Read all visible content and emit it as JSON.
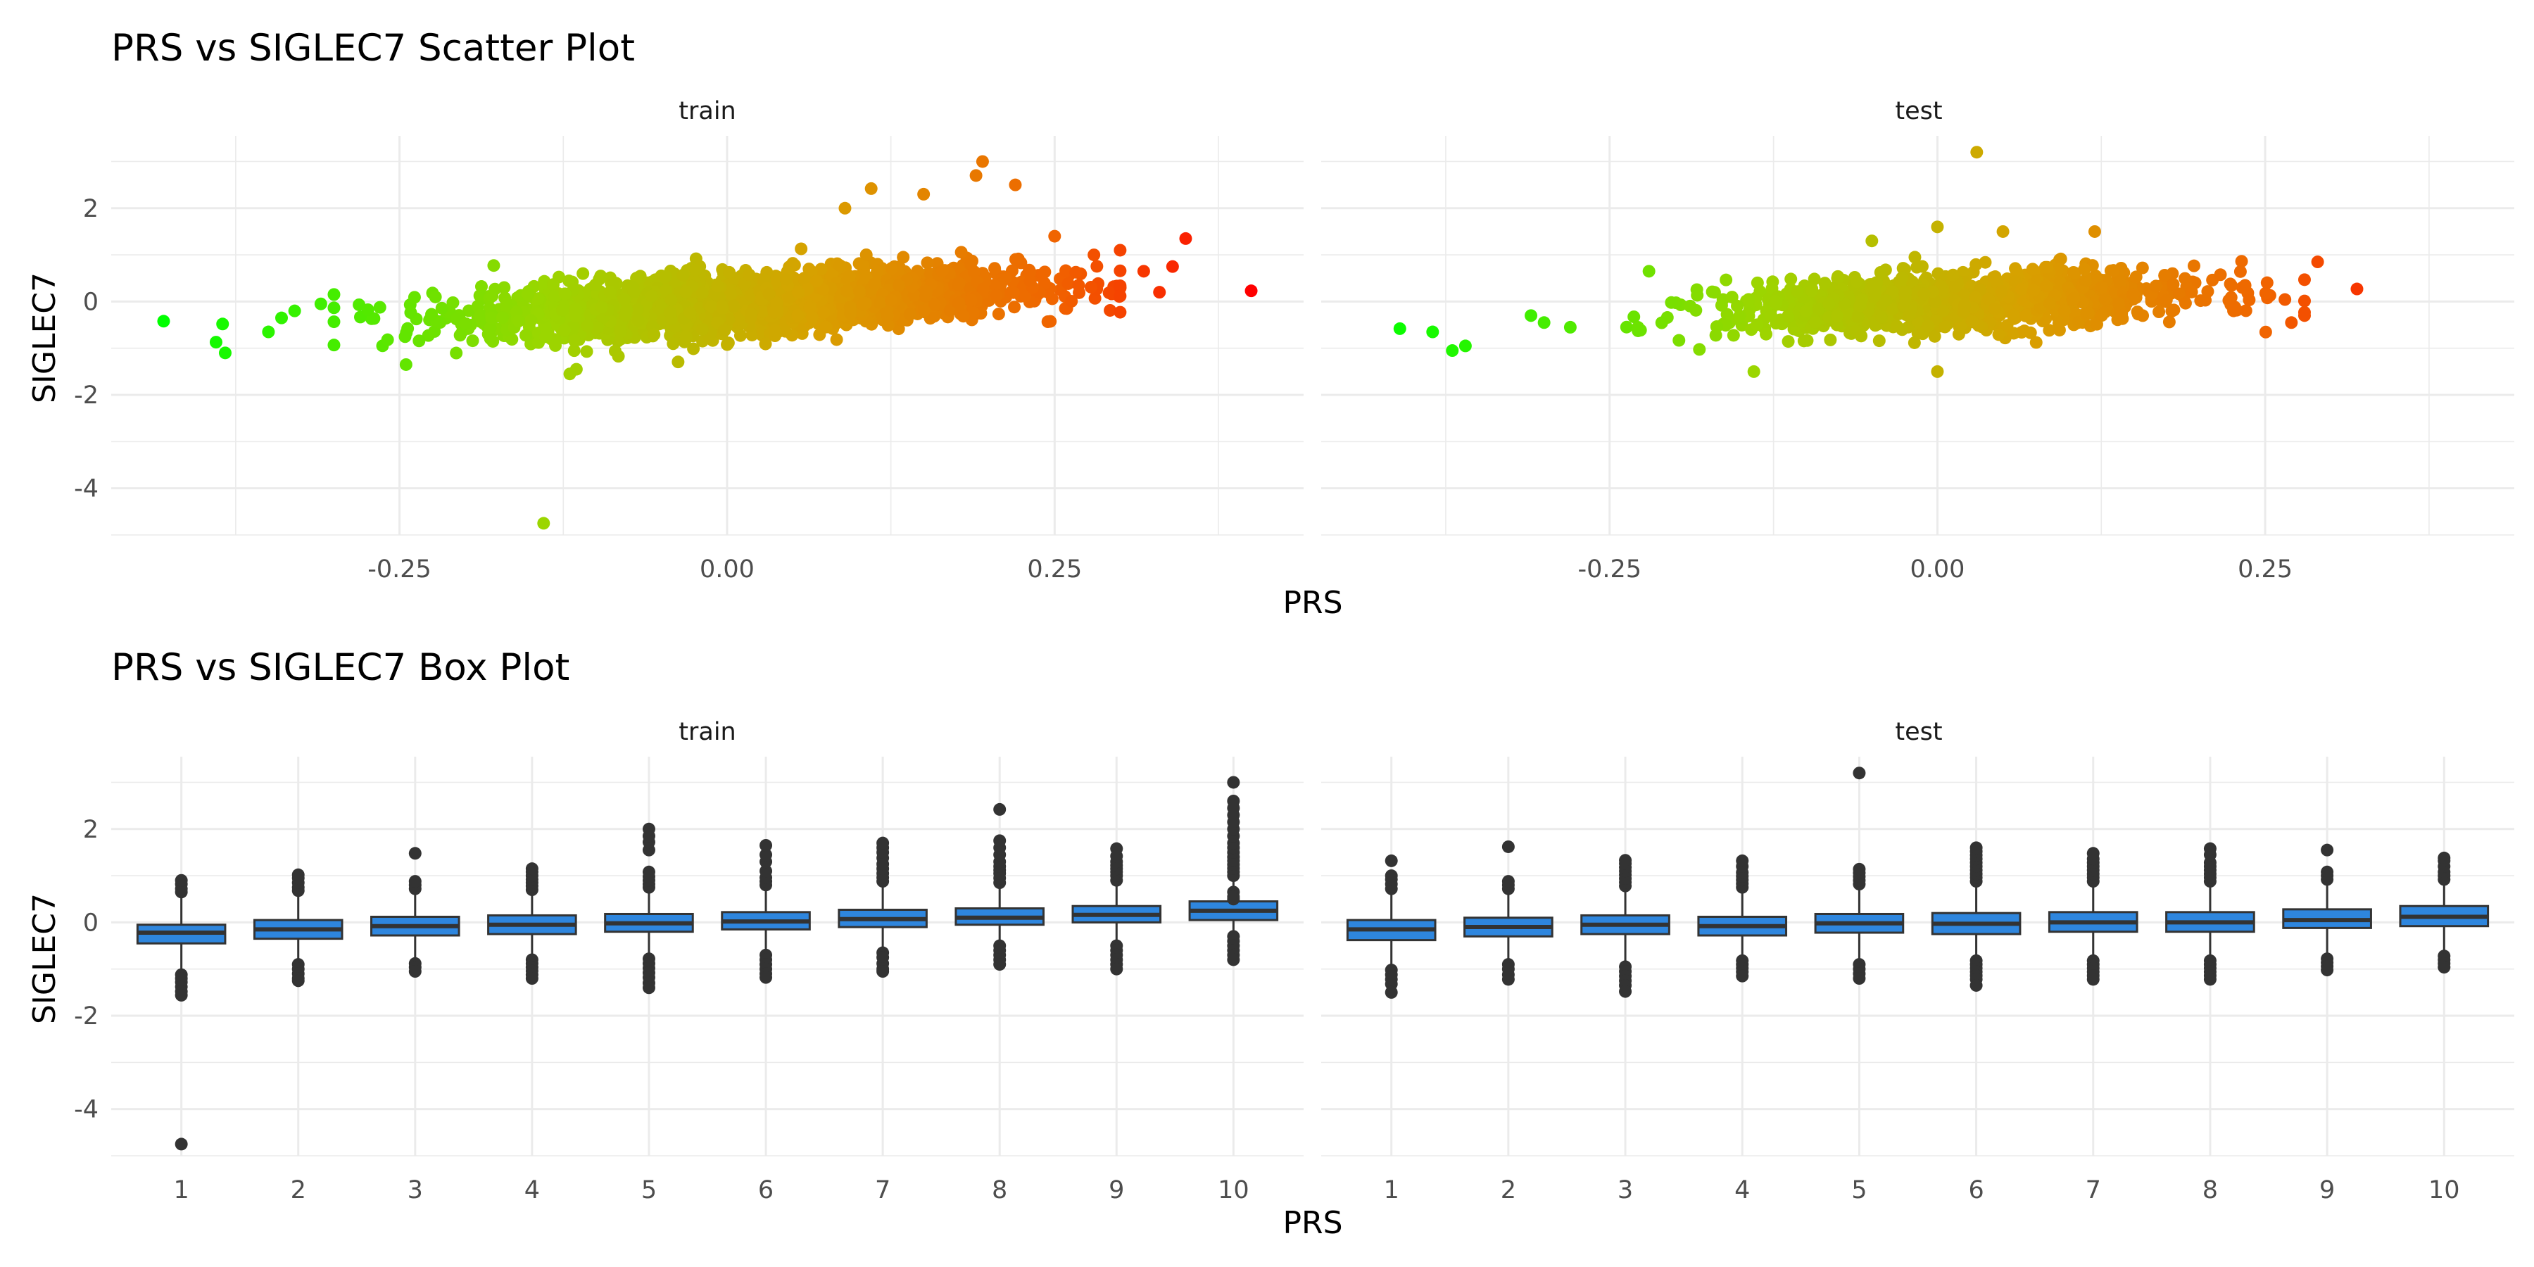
{
  "chart_data": [
    {
      "type": "scatter",
      "title": "PRS vs SIGLEC7 Scatter Plot",
      "xlabel": "PRS",
      "ylabel": "SIGLEC7",
      "xlim": [
        -0.47,
        0.44
      ],
      "ylim": [
        -5.0,
        3.55
      ],
      "x_ticks": [
        -0.25,
        0.0,
        0.25
      ],
      "x_tick_labels": [
        "-0.25",
        "0.00",
        "0.25"
      ],
      "y_ticks": [
        -4,
        -2,
        0,
        2
      ],
      "y_tick_labels": [
        "-4",
        "-2",
        "0",
        "2"
      ],
      "grid": true,
      "legend": "none",
      "color_scale": {
        "low": "#00ff00",
        "high": "#ff0000",
        "mapped_to": "PRS"
      },
      "facets": [
        {
          "label": "train",
          "cloud": {
            "n": 2600,
            "x_mean": 0.02,
            "x_sd": 0.1,
            "slope": 1.5,
            "residual_sd": 0.3,
            "x_range": [
              -0.3,
              0.3
            ]
          },
          "points": [
            {
              "x": -0.43,
              "y": -0.42
            },
            {
              "x": -0.39,
              "y": -0.87
            },
            {
              "x": -0.385,
              "y": -0.48
            },
            {
              "x": -0.383,
              "y": -1.1
            },
            {
              "x": -0.14,
              "y": -4.75
            },
            {
              "x": 0.11,
              "y": 2.42
            },
            {
              "x": 0.195,
              "y": 3.0
            },
            {
              "x": 0.22,
              "y": 2.5
            },
            {
              "x": 0.19,
              "y": 2.7
            },
            {
              "x": 0.09,
              "y": 2.0
            },
            {
              "x": 0.15,
              "y": 2.3
            },
            {
              "x": 0.35,
              "y": 1.35
            },
            {
              "x": 0.34,
              "y": 0.75
            },
            {
              "x": 0.33,
              "y": 0.2
            },
            {
              "x": 0.318,
              "y": 0.65
            },
            {
              "x": 0.4,
              "y": 0.23
            },
            {
              "x": -0.35,
              "y": -0.65
            },
            {
              "x": -0.34,
              "y": -0.35
            },
            {
              "x": -0.33,
              "y": -0.2
            },
            {
              "x": -0.31,
              "y": -0.05
            },
            {
              "x": 0.3,
              "y": 1.1
            },
            {
              "x": 0.28,
              "y": 1.0
            },
            {
              "x": 0.25,
              "y": 1.4
            },
            {
              "x": -0.245,
              "y": -1.35
            },
            {
              "x": -0.115,
              "y": -1.45
            },
            {
              "x": -0.12,
              "y": -1.55
            },
            {
              "x": -0.11,
              "y": 0.6
            }
          ]
        },
        {
          "label": "test",
          "cloud": {
            "n": 1100,
            "x_mean": 0.02,
            "x_sd": 0.09,
            "slope": 1.1,
            "residual_sd": 0.3,
            "x_range": [
              -0.27,
              0.28
            ]
          },
          "points": [
            {
              "x": -0.41,
              "y": -0.58
            },
            {
              "x": -0.385,
              "y": -0.65
            },
            {
              "x": -0.37,
              "y": -1.05
            },
            {
              "x": -0.36,
              "y": -0.95
            },
            {
              "x": -0.31,
              "y": -0.3
            },
            {
              "x": -0.3,
              "y": -0.45
            },
            {
              "x": -0.28,
              "y": -0.55
            },
            {
              "x": -0.22,
              "y": 0.65
            },
            {
              "x": 0.03,
              "y": 3.2
            },
            {
              "x": 0.32,
              "y": 0.27
            },
            {
              "x": 0.29,
              "y": 0.85
            },
            {
              "x": 0.28,
              "y": -0.3
            },
            {
              "x": 0.27,
              "y": -0.45
            },
            {
              "x": -0.14,
              "y": -1.5
            },
            {
              "x": 0.0,
              "y": -1.5
            },
            {
              "x": -0.05,
              "y": 1.3
            },
            {
              "x": 0.0,
              "y": 1.6
            },
            {
              "x": 0.05,
              "y": 1.5
            },
            {
              "x": 0.12,
              "y": 1.5
            }
          ]
        }
      ]
    },
    {
      "type": "box",
      "title": "PRS vs SIGLEC7 Box Plot",
      "xlabel": "PRS",
      "ylabel": "SIGLEC7",
      "categories": [
        "1",
        "2",
        "3",
        "4",
        "5",
        "6",
        "7",
        "8",
        "9",
        "10"
      ],
      "ylim": [
        -5.0,
        3.55
      ],
      "y_ticks": [
        -4,
        -2,
        0,
        2
      ],
      "y_tick_labels": [
        "-4",
        "-2",
        "0",
        "2"
      ],
      "grid": true,
      "box_color": "#2e86de",
      "outline_color": "#333333",
      "facets": [
        {
          "label": "train",
          "boxes": [
            {
              "q1": -0.45,
              "median": -0.22,
              "q3": -0.05,
              "whisker_low": -1.05,
              "whisker_high": 0.55,
              "outliers": [
                0.65,
                0.72,
                0.82,
                0.9,
                -1.12,
                -1.2,
                -1.28,
                -1.38,
                -1.48,
                -1.56,
                -4.75
              ]
            },
            {
              "q1": -0.35,
              "median": -0.15,
              "q3": 0.05,
              "whisker_low": -0.85,
              "whisker_high": 0.6,
              "outliers": [
                0.68,
                0.75,
                0.85,
                0.95,
                1.02,
                -0.9,
                -1.0,
                -1.1,
                -1.2,
                -1.25
              ]
            },
            {
              "q1": -0.28,
              "median": -0.08,
              "q3": 0.12,
              "whisker_low": -0.85,
              "whisker_high": 0.65,
              "outliers": [
                0.72,
                0.8,
                0.88,
                1.48,
                -0.88,
                -0.96,
                -1.05
              ]
            },
            {
              "q1": -0.25,
              "median": -0.05,
              "q3": 0.15,
              "whisker_low": -0.75,
              "whisker_high": 0.65,
              "outliers": [
                0.7,
                0.78,
                0.85,
                0.92,
                1.0,
                1.08,
                1.15,
                -0.8,
                -0.88,
                -0.96,
                -1.04,
                -1.12,
                -1.2
              ]
            },
            {
              "q1": -0.2,
              "median": -0.02,
              "q3": 0.18,
              "whisker_low": -0.72,
              "whisker_high": 0.68,
              "outliers": [
                0.75,
                0.82,
                0.9,
                0.98,
                1.08,
                1.55,
                1.72,
                1.85,
                2.0,
                -0.78,
                -0.88,
                -0.98,
                -1.08,
                -1.18,
                -1.3,
                -1.4
              ]
            },
            {
              "q1": -0.15,
              "median": 0.02,
              "q3": 0.22,
              "whisker_low": -0.65,
              "whisker_high": 0.72,
              "outliers": [
                0.8,
                0.88,
                0.96,
                1.1,
                1.3,
                1.45,
                1.65,
                -0.7,
                -0.8,
                -0.9,
                -1.0,
                -1.1,
                -1.18
              ]
            },
            {
              "q1": -0.1,
              "median": 0.07,
              "q3": 0.27,
              "whisker_low": -0.6,
              "whisker_high": 0.8,
              "outliers": [
                0.88,
                0.96,
                1.05,
                1.15,
                1.25,
                1.38,
                1.5,
                1.6,
                1.7,
                -0.65,
                -0.75,
                -0.88,
                -1.0,
                -1.05
              ]
            },
            {
              "q1": -0.05,
              "median": 0.1,
              "q3": 0.3,
              "whisker_low": -0.45,
              "whisker_high": 0.75,
              "outliers": [
                0.85,
                0.95,
                1.05,
                1.12,
                1.2,
                1.3,
                1.45,
                1.6,
                1.75,
                2.42,
                -0.5,
                -0.6,
                -0.7,
                -0.8,
                -0.9
              ]
            },
            {
              "q1": 0.0,
              "median": 0.16,
              "q3": 0.35,
              "whisker_low": -0.45,
              "whisker_high": 0.8,
              "outliers": [
                0.9,
                1.0,
                1.08,
                1.15,
                1.22,
                1.3,
                1.42,
                1.58,
                -0.5,
                -0.6,
                -0.7,
                -0.8,
                -0.9,
                -1.0
              ]
            },
            {
              "q1": 0.05,
              "median": 0.25,
              "q3": 0.45,
              "whisker_low": -0.2,
              "whisker_high": 0.9,
              "outliers": [
                1.0,
                1.08,
                1.16,
                1.24,
                1.32,
                1.4,
                1.5,
                1.6,
                1.7,
                1.85,
                2.0,
                2.15,
                2.3,
                2.45,
                2.6,
                3.0,
                0.65,
                0.55,
                0.5,
                -0.3,
                -0.4,
                -0.5,
                -0.6,
                -0.7,
                -0.8
              ]
            }
          ]
        },
        {
          "label": "test",
          "boxes": [
            {
              "q1": -0.38,
              "median": -0.15,
              "q3": 0.05,
              "whisker_low": -0.95,
              "whisker_high": 0.65,
              "outliers": [
                0.72,
                0.82,
                0.92,
                1.0,
                1.32,
                -1.02,
                -1.12,
                -1.22,
                -1.32,
                -1.5
              ]
            },
            {
              "q1": -0.3,
              "median": -0.1,
              "q3": 0.1,
              "whisker_low": -0.85,
              "whisker_high": 0.65,
              "outliers": [
                0.72,
                0.8,
                0.88,
                1.62,
                -0.9,
                -1.0,
                -1.12,
                -1.22
              ]
            },
            {
              "q1": -0.25,
              "median": -0.05,
              "q3": 0.15,
              "whisker_low": -0.85,
              "whisker_high": 0.7,
              "outliers": [
                0.78,
                0.86,
                0.94,
                1.02,
                1.1,
                1.18,
                1.26,
                1.33,
                -0.95,
                -1.05,
                -1.15,
                -1.25,
                -1.35,
                -1.48
              ]
            },
            {
              "q1": -0.28,
              "median": -0.08,
              "q3": 0.12,
              "whisker_low": -0.75,
              "whisker_high": 0.68,
              "outliers": [
                0.75,
                0.83,
                0.91,
                0.99,
                1.07,
                1.2,
                1.32,
                -0.82,
                -0.9,
                -0.98,
                -1.06,
                -1.15
              ]
            },
            {
              "q1": -0.22,
              "median": -0.02,
              "q3": 0.18,
              "whisker_low": -0.8,
              "whisker_high": 0.75,
              "outliers": [
                0.82,
                0.9,
                0.98,
                1.06,
                1.14,
                3.2,
                -0.9,
                -1.0,
                -1.1,
                -1.2
              ]
            },
            {
              "q1": -0.25,
              "median": -0.03,
              "q3": 0.2,
              "whisker_low": -0.75,
              "whisker_high": 0.8,
              "outliers": [
                0.88,
                0.96,
                1.04,
                1.12,
                1.2,
                1.28,
                1.36,
                1.44,
                1.52,
                1.6,
                -0.82,
                -0.9,
                -0.98,
                -1.06,
                -1.14,
                -1.22,
                -1.35
              ]
            },
            {
              "q1": -0.2,
              "median": 0.0,
              "q3": 0.22,
              "whisker_low": -0.75,
              "whisker_high": 0.8,
              "outliers": [
                0.88,
                0.96,
                1.04,
                1.12,
                1.2,
                1.28,
                1.36,
                1.48,
                -0.82,
                -0.9,
                -0.98,
                -1.06,
                -1.14,
                -1.22
              ]
            },
            {
              "q1": -0.2,
              "median": 0.0,
              "q3": 0.22,
              "whisker_low": -0.75,
              "whisker_high": 0.8,
              "outliers": [
                0.88,
                0.96,
                1.04,
                1.12,
                1.2,
                1.28,
                1.45,
                1.58,
                -0.82,
                -0.9,
                -0.98,
                -1.06,
                -1.14,
                -1.22
              ]
            },
            {
              "q1": -0.12,
              "median": 0.05,
              "q3": 0.28,
              "whisker_low": -0.7,
              "whisker_high": 0.85,
              "outliers": [
                0.92,
                1.0,
                1.08,
                1.55,
                -0.78,
                -0.86,
                -0.94,
                -1.02
              ]
            },
            {
              "q1": -0.08,
              "median": 0.12,
              "q3": 0.35,
              "whisker_low": -0.65,
              "whisker_high": 0.85,
              "outliers": [
                0.92,
                1.0,
                1.08,
                1.2,
                1.32,
                1.38,
                -0.72,
                -0.8,
                -0.88,
                -0.96
              ]
            }
          ]
        }
      ]
    }
  ]
}
